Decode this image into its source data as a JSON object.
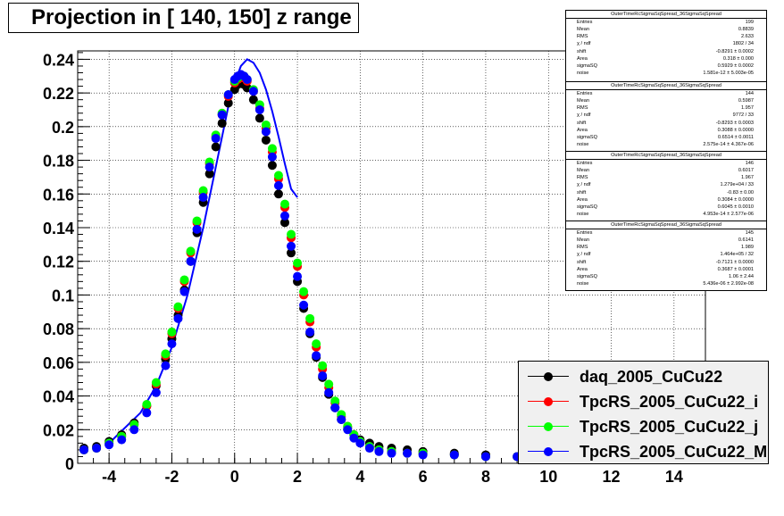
{
  "title": "Projection in [ 140, 150] z range",
  "colors": {
    "daq": "#000000",
    "tpcrs_i": "#ff0000",
    "tpcrs_j": "#00ff00",
    "tpcrs_m": "#0000ff"
  },
  "legend": {
    "entries": [
      {
        "label": "daq_2005_CuCu22",
        "color": "#000000"
      },
      {
        "label": "TpcRS_2005_CuCu22_i",
        "color": "#ff0000"
      },
      {
        "label": "TpcRS_2005_CuCu22_j",
        "color": "#00ff00"
      },
      {
        "label": "TpcRS_2005_CuCu22_M",
        "color": "#0000ff"
      }
    ]
  },
  "stats_boxes": [
    {
      "title": "OuterTimeRcSigmaSqSpread_36SigmaSqSpread",
      "rows": [
        [
          "Entries",
          "199"
        ],
        [
          "Mean",
          "0.8839"
        ],
        [
          "RMS",
          "2.633"
        ],
        [
          "χ  / ndf",
          "1802 / 34"
        ],
        [
          "shift",
          "-0.8291 ± 0.0002"
        ],
        [
          "Area",
          "0.318 ± 0.000"
        ],
        [
          "sigmaSQ",
          "0.5929 ± 0.0002"
        ],
        [
          "noise",
          "1.581e-12 ± 5.003e-05"
        ]
      ]
    },
    {
      "title": "OuterTimeRcSigmaSqSpread_36SigmaSqSpread",
      "rows": [
        [
          "Entries",
          "144"
        ],
        [
          "Mean",
          "0.5987"
        ],
        [
          "RMS",
          "1.957"
        ],
        [
          "χ  / ndf",
          "9772 / 33"
        ],
        [
          "shift",
          "-0.8293 ± 0.0003"
        ],
        [
          "Area",
          "0.3088 ± 0.0000"
        ],
        [
          "sigmaSQ",
          "0.6514 ± 0.0011"
        ],
        [
          "noise",
          "2.575e-14 ± 4.367e-06"
        ]
      ]
    },
    {
      "title": "OuterTimeRcSigmaSqSpread_36SigmaSqSpread",
      "rows": [
        [
          "Entries",
          "146"
        ],
        [
          "Mean",
          "0.6017"
        ],
        [
          "RMS",
          "1.967"
        ],
        [
          "χ  / ndf",
          "1.279e+04 / 33"
        ],
        [
          "shift",
          "-0.83 ± 0.00"
        ],
        [
          "Area",
          "0.3084 ± 0.0000"
        ],
        [
          "sigmaSQ",
          "0.6045 ± 0.0010"
        ],
        [
          "noise",
          "4.953e-14 ± 2.577e-06"
        ]
      ]
    },
    {
      "title": "OuterTimeRcSigmaSqSpread_36SigmaSqSpread",
      "rows": [
        [
          "Entries",
          "145"
        ],
        [
          "Mean",
          "0.6141"
        ],
        [
          "RMS",
          "1.989"
        ],
        [
          "χ  / ndf",
          "1.464e+05 / 32"
        ],
        [
          "shift",
          "-0.7121 ± 0.0000"
        ],
        [
          "Area",
          "0.3687 ± 0.0001"
        ],
        [
          "sigmaSQ",
          "1.06 ± 2.44"
        ],
        [
          "noise",
          "5.436e-06 ± 2.992e-08"
        ]
      ]
    }
  ],
  "chart_data": {
    "type": "scatter",
    "title": "Projection in [ 140, 150] z range",
    "xlim": [
      -5,
      15
    ],
    "ylim": [
      0,
      0.245
    ],
    "x_ticks": [
      -4,
      -2,
      0,
      2,
      4,
      6,
      8,
      10,
      12,
      14
    ],
    "x_tick_labels": [
      "-4",
      "-2",
      "0",
      "2",
      "4",
      "6",
      "8",
      "10",
      "12",
      "14"
    ],
    "y_ticks": [
      0,
      0.02,
      0.04,
      0.06,
      0.08,
      0.1,
      0.12,
      0.14,
      0.16,
      0.18,
      0.2,
      0.22,
      0.24
    ],
    "y_tick_labels": [
      "0",
      "0.02",
      "0.04",
      "0.06",
      "0.08",
      "0.1",
      "0.12",
      "0.14",
      "0.16",
      "0.18",
      "0.2",
      "0.22",
      "0.24"
    ],
    "grid": true,
    "legend_position": "bottom-right",
    "series": [
      {
        "name": "daq_2005_CuCu22",
        "color": "#000000",
        "offset": 0.0,
        "width": 1.0,
        "x": [
          -4.8,
          -4.4,
          -4.0,
          -3.6,
          -3.2,
          -2.8,
          -2.5,
          -2.2,
          -2.0,
          -1.8,
          -1.6,
          -1.4,
          -1.2,
          -1.0,
          -0.8,
          -0.6,
          -0.4,
          -0.2,
          0.0,
          0.1,
          0.2,
          0.3,
          0.4,
          0.6,
          0.8,
          1.0,
          1.2,
          1.4,
          1.6,
          1.8,
          2.0,
          2.2,
          2.4,
          2.6,
          2.8,
          3.0,
          3.2,
          3.4,
          3.6,
          3.8,
          4.0,
          4.3,
          4.6,
          5.0,
          5.5,
          6.0,
          7.0,
          8.0,
          9.0
        ],
        "y": [
          0.009,
          0.01,
          0.013,
          0.017,
          0.024,
          0.034,
          0.046,
          0.062,
          0.074,
          0.088,
          0.103,
          0.12,
          0.137,
          0.155,
          0.172,
          0.188,
          0.202,
          0.214,
          0.222,
          0.225,
          0.226,
          0.225,
          0.223,
          0.216,
          0.205,
          0.192,
          0.177,
          0.16,
          0.143,
          0.125,
          0.108,
          0.092,
          0.077,
          0.063,
          0.051,
          0.041,
          0.033,
          0.026,
          0.021,
          0.017,
          0.014,
          0.012,
          0.01,
          0.009,
          0.008,
          0.007,
          0.006,
          0.005,
          0.004
        ]
      },
      {
        "name": "TpcRS_2005_CuCu22_i",
        "color": "#ff0000",
        "x": [
          -4.8,
          -4.4,
          -4.0,
          -3.6,
          -3.2,
          -2.8,
          -2.5,
          -2.2,
          -2.0,
          -1.8,
          -1.6,
          -1.4,
          -1.2,
          -1.0,
          -0.8,
          -0.6,
          -0.4,
          -0.2,
          0.0,
          0.1,
          0.2,
          0.3,
          0.4,
          0.6,
          0.8,
          1.0,
          1.2,
          1.4,
          1.6,
          1.8,
          2.0,
          2.2,
          2.4,
          2.6,
          2.8,
          3.0,
          3.2,
          3.4,
          3.6,
          3.8,
          4.0,
          4.3,
          4.6,
          5.0,
          5.5,
          6.0,
          7.0,
          8.0,
          9.0
        ],
        "y": [
          0.008,
          0.009,
          0.012,
          0.016,
          0.023,
          0.034,
          0.047,
          0.064,
          0.077,
          0.092,
          0.108,
          0.125,
          0.143,
          0.161,
          0.178,
          0.194,
          0.207,
          0.218,
          0.226,
          0.228,
          0.229,
          0.229,
          0.227,
          0.221,
          0.211,
          0.199,
          0.185,
          0.169,
          0.152,
          0.134,
          0.117,
          0.1,
          0.084,
          0.069,
          0.056,
          0.045,
          0.036,
          0.028,
          0.022,
          0.017,
          0.013,
          0.01,
          0.008,
          0.007,
          0.006,
          0.006,
          0.005,
          0.004,
          0.004
        ]
      },
      {
        "name": "TpcRS_2005_CuCu22_j",
        "color": "#00ff00",
        "x": [
          -4.8,
          -4.4,
          -4.0,
          -3.6,
          -3.2,
          -2.8,
          -2.5,
          -2.2,
          -2.0,
          -1.8,
          -1.6,
          -1.4,
          -1.2,
          -1.0,
          -0.8,
          -0.6,
          -0.4,
          -0.2,
          0.0,
          0.1,
          0.2,
          0.3,
          0.4,
          0.6,
          0.8,
          1.0,
          1.2,
          1.4,
          1.6,
          1.8,
          2.0,
          2.2,
          2.4,
          2.6,
          2.8,
          3.0,
          3.2,
          3.4,
          3.6,
          3.8,
          4.0,
          4.3,
          4.6,
          5.0,
          5.5,
          6.0,
          7.0,
          8.0,
          9.0
        ],
        "y": [
          0.008,
          0.009,
          0.012,
          0.016,
          0.023,
          0.035,
          0.048,
          0.065,
          0.078,
          0.093,
          0.109,
          0.126,
          0.144,
          0.162,
          0.179,
          0.195,
          0.208,
          0.219,
          0.227,
          0.229,
          0.23,
          0.23,
          0.228,
          0.222,
          0.213,
          0.201,
          0.187,
          0.171,
          0.154,
          0.136,
          0.119,
          0.102,
          0.086,
          0.071,
          0.058,
          0.047,
          0.037,
          0.029,
          0.022,
          0.017,
          0.013,
          0.01,
          0.008,
          0.007,
          0.006,
          0.006,
          0.005,
          0.004,
          0.004
        ]
      },
      {
        "name": "TpcRS_2005_CuCu22_M",
        "color": "#0000ff",
        "x": [
          -4.8,
          -4.4,
          -4.0,
          -3.6,
          -3.2,
          -2.8,
          -2.5,
          -2.2,
          -2.0,
          -1.8,
          -1.6,
          -1.4,
          -1.2,
          -1.0,
          -0.8,
          -0.6,
          -0.4,
          -0.2,
          0.0,
          0.1,
          0.2,
          0.3,
          0.4,
          0.6,
          0.8,
          1.0,
          1.2,
          1.4,
          1.6,
          1.8,
          2.0,
          2.2,
          2.4,
          2.6,
          2.8,
          3.0,
          3.2,
          3.4,
          3.6,
          3.8,
          4.0,
          4.3,
          4.6,
          5.0,
          5.5,
          6.0,
          7.0,
          8.0,
          9.0
        ],
        "y": [
          0.008,
          0.009,
          0.011,
          0.014,
          0.02,
          0.03,
          0.042,
          0.058,
          0.071,
          0.086,
          0.102,
          0.12,
          0.139,
          0.158,
          0.176,
          0.193,
          0.207,
          0.219,
          0.228,
          0.23,
          0.231,
          0.23,
          0.228,
          0.221,
          0.21,
          0.197,
          0.182,
          0.165,
          0.147,
          0.129,
          0.111,
          0.094,
          0.078,
          0.064,
          0.052,
          0.042,
          0.033,
          0.026,
          0.02,
          0.015,
          0.012,
          0.009,
          0.007,
          0.006,
          0.006,
          0.005,
          0.005,
          0.004,
          0.004
        ]
      }
    ],
    "fit_curve": {
      "color": "#0000ff",
      "x": [
        -4.0,
        -3.0,
        -2.5,
        -2.0,
        -1.5,
        -1.0,
        -0.5,
        -0.2,
        0.0,
        0.2,
        0.4,
        0.6,
        0.8,
        1.0,
        1.2,
        1.4,
        1.6,
        1.8,
        2.0
      ],
      "y": [
        0.012,
        0.03,
        0.046,
        0.069,
        0.1,
        0.14,
        0.185,
        0.212,
        0.226,
        0.236,
        0.24,
        0.238,
        0.232,
        0.222,
        0.209,
        0.194,
        0.178,
        0.163,
        0.158
      ]
    }
  }
}
